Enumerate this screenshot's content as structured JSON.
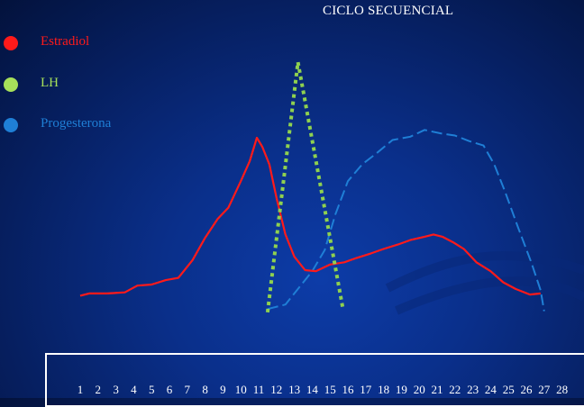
{
  "chart_data": {
    "type": "line",
    "title": "CICLO SECUENCIAL",
    "xlabel": "",
    "ylabel": "",
    "categories": [
      "1",
      "2",
      "3",
      "4",
      "5",
      "6",
      "7",
      "8",
      "9",
      "10",
      "11",
      "12",
      "13",
      "14",
      "15",
      "16",
      "17",
      "18",
      "19",
      "20",
      "21",
      "22",
      "23",
      "24",
      "25",
      "26",
      "27",
      "28"
    ],
    "grid": false,
    "legend_position": "top-left",
    "series": [
      {
        "name": "Estradiol",
        "color": "#ff1a1a",
        "style": "solid",
        "x": [
          1,
          1.5,
          2.5,
          3.5,
          4.2,
          5,
          5.8,
          6.5,
          7.3,
          8,
          8.7,
          9.3,
          10,
          10.5,
          10.9,
          11.2,
          11.6,
          12,
          12.5,
          13,
          13.6,
          14.2,
          15,
          15.8,
          16.5,
          17.3,
          18,
          18.8,
          19.5,
          20.3,
          20.8,
          21.3,
          21.9,
          22.5,
          23.2,
          24,
          24.7,
          25.4,
          26.2,
          26.8
        ],
        "y": [
          2.4,
          2.6,
          2.6,
          2.7,
          3.3,
          3.4,
          3.8,
          4.0,
          5.6,
          7.6,
          9.3,
          10.3,
          12.7,
          14.5,
          16.6,
          15.8,
          14.2,
          11.2,
          7.9,
          5.9,
          4.7,
          4.6,
          5.2,
          5.4,
          5.8,
          6.2,
          6.6,
          7.0,
          7.4,
          7.7,
          7.9,
          7.7,
          7.2,
          6.6,
          5.4,
          4.6,
          3.6,
          3.0,
          2.5,
          2.6
        ]
      },
      {
        "name": "LH",
        "color": "#8fd14f",
        "style": "dotted",
        "x": [
          11.5,
          13.2,
          15.7
        ],
        "y": [
          0.9,
          23.4,
          1.4
        ]
      },
      {
        "name": "Progesterona",
        "color": "#1f7fd6",
        "style": "dashed",
        "x": [
          11.5,
          12.5,
          13.2,
          14.0,
          14.7,
          15.3,
          16.0,
          16.8,
          17.6,
          18.5,
          19.5,
          20.3,
          21.2,
          22.0,
          22.8,
          23.6,
          24.2,
          24.8,
          25.5,
          26.3,
          26.8,
          27.0
        ],
        "y": [
          1.2,
          1.6,
          3.0,
          4.6,
          6.5,
          9.7,
          12.7,
          14.2,
          15.2,
          16.4,
          16.7,
          17.3,
          17.0,
          16.8,
          16.3,
          15.9,
          14.2,
          11.8,
          8.7,
          5.3,
          2.9,
          1.0
        ]
      }
    ]
  },
  "legend": [
    {
      "label": "Estradiol",
      "color": "#ff1a1a"
    },
    {
      "label": "LH",
      "color": "#a6e05a"
    },
    {
      "label": "Progesterona",
      "color": "#1f7fd6"
    }
  ]
}
